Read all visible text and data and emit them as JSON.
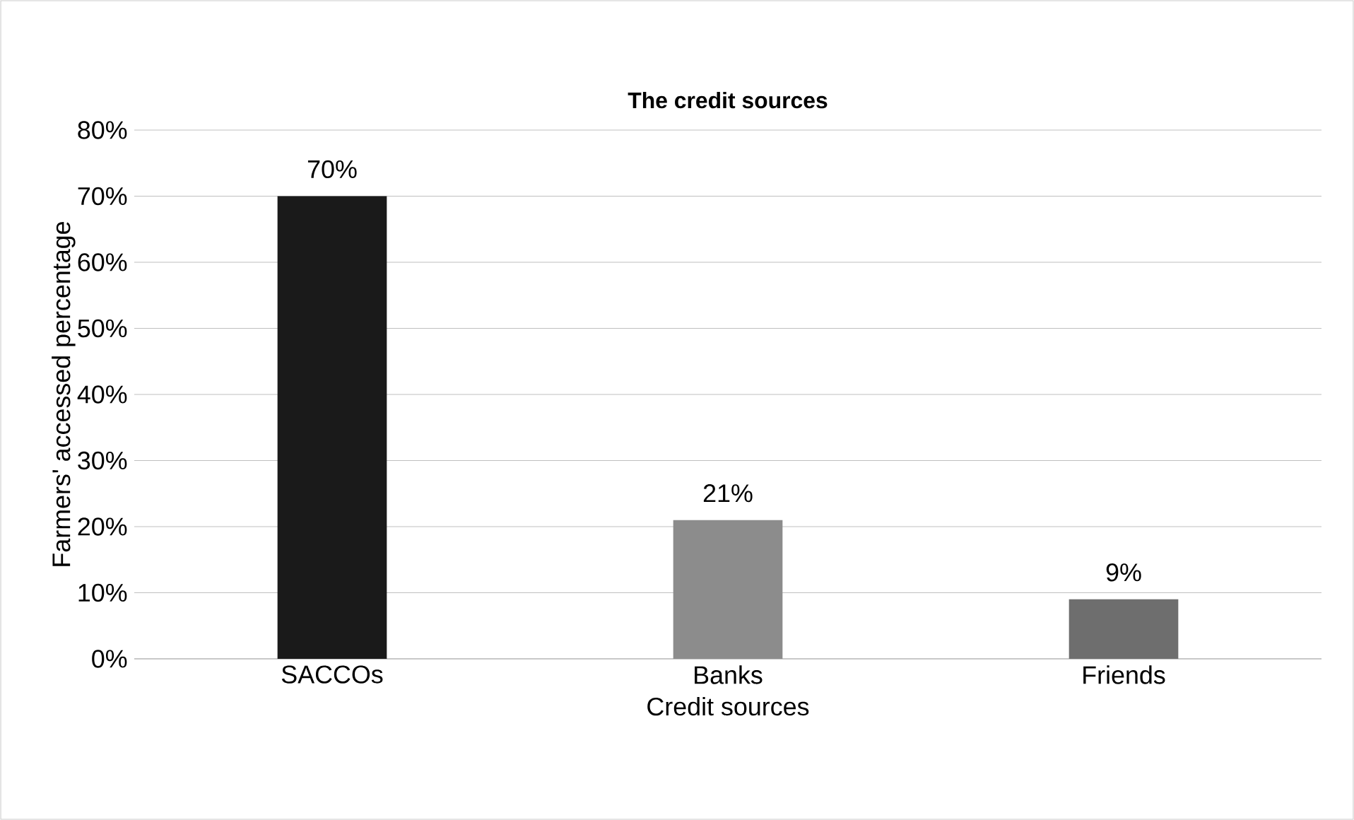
{
  "chart_data": {
    "type": "bar",
    "title": "The credit sources",
    "xlabel": "Credit sources",
    "ylabel": "Farmers' accessed percentage",
    "categories": [
      "SACCOs",
      "Banks",
      "Friends"
    ],
    "values": [
      70,
      21,
      9
    ],
    "colors": [
      "#1a1a1a",
      "#8c8c8c",
      "#6e6e6e"
    ],
    "value_labels": [
      "70%",
      "21%",
      "9%"
    ],
    "ylim": [
      0,
      80
    ],
    "yticks": [
      {
        "value": 0,
        "label": "0%"
      },
      {
        "value": 10,
        "label": "10%"
      },
      {
        "value": 20,
        "label": "20%"
      },
      {
        "value": 30,
        "label": "30%"
      },
      {
        "value": 40,
        "label": "40%"
      },
      {
        "value": 50,
        "label": "50%"
      },
      {
        "value": 60,
        "label": "60%"
      },
      {
        "value": 70,
        "label": "70%"
      },
      {
        "value": 80,
        "label": "80%"
      }
    ],
    "grid": "y"
  }
}
